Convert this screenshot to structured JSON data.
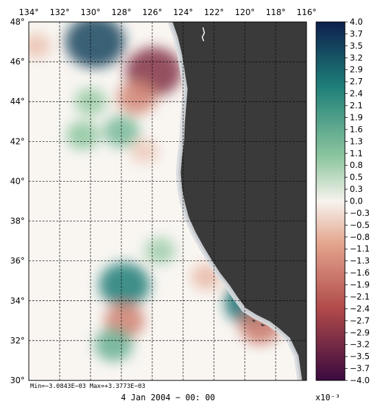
{
  "chart_data": {
    "type": "heatmap",
    "title": "",
    "x_ticks": [
      "134°",
      "132°",
      "130°",
      "128°",
      "126°",
      "124°",
      "122°",
      "120°",
      "118°",
      "116°"
    ],
    "y_ticks": [
      "48°",
      "46°",
      "44°",
      "42°",
      "40°",
      "38°",
      "36°",
      "34°",
      "32°",
      "30°"
    ],
    "xlim": [
      -134,
      -116
    ],
    "ylim": [
      30,
      48
    ],
    "grid": true,
    "land_color": "#3a3a3a",
    "colorbar": {
      "ticks": [
        "4.0",
        "3.7",
        "3.5",
        "3.2",
        "2.9",
        "2.7",
        "2.4",
        "2.1",
        "1.9",
        "1.6",
        "1.3",
        "1.1",
        "0.8",
        "0.5",
        "0.3",
        "0.0",
        "−0.3",
        "−0.5",
        "−0.8",
        "−1.1",
        "−1.3",
        "−1.6",
        "−1.9",
        "−2.1",
        "−2.4",
        "−2.7",
        "−2.9",
        "−3.2",
        "−3.5",
        "−3.7",
        "−4.0"
      ],
      "range": [
        -4.0,
        4.0
      ],
      "colors": {
        "max": "#0d1f4d",
        "high": "#1e7f78",
        "mid_high": "#8fc7a0",
        "zero": "#f7f3ee",
        "mid_low": "#e3a48c",
        "low": "#b04a4a",
        "min": "#3a0a3f"
      },
      "scale": "x10⁻³"
    },
    "min_max_text": "Min=−3.0843E−03   Max=+3.3773E−03",
    "timestamp": "4 Jan 2004 − 00: 00",
    "features": [
      {
        "lon": -129.7,
        "lat": 47.0,
        "value": 3.4
      },
      {
        "lon": -125.9,
        "lat": 45.5,
        "value": -3.1
      },
      {
        "lon": -127.0,
        "lat": 44.2,
        "value": -1.5
      },
      {
        "lon": -128.0,
        "lat": 42.5,
        "value": 1.3
      },
      {
        "lon": -130.5,
        "lat": 42.3,
        "value": 1.0
      },
      {
        "lon": -126.5,
        "lat": 41.5,
        "value": -0.5
      },
      {
        "lon": -127.8,
        "lat": 34.8,
        "value": 2.6
      },
      {
        "lon": -127.8,
        "lat": 33.0,
        "value": -1.6
      },
      {
        "lon": -119.6,
        "lat": 33.9,
        "value": 2.8
      },
      {
        "lon": -119.0,
        "lat": 32.7,
        "value": -1.7
      },
      {
        "lon": -128.5,
        "lat": 31.8,
        "value": 1.5
      },
      {
        "lon": -133.5,
        "lat": 46.8,
        "value": -0.6
      },
      {
        "lon": -130.0,
        "lat": 44.0,
        "value": 0.9
      },
      {
        "lon": -122.5,
        "lat": 35.2,
        "value": -0.7
      },
      {
        "lon": -125.5,
        "lat": 36.5,
        "value": 0.8
      }
    ]
  }
}
